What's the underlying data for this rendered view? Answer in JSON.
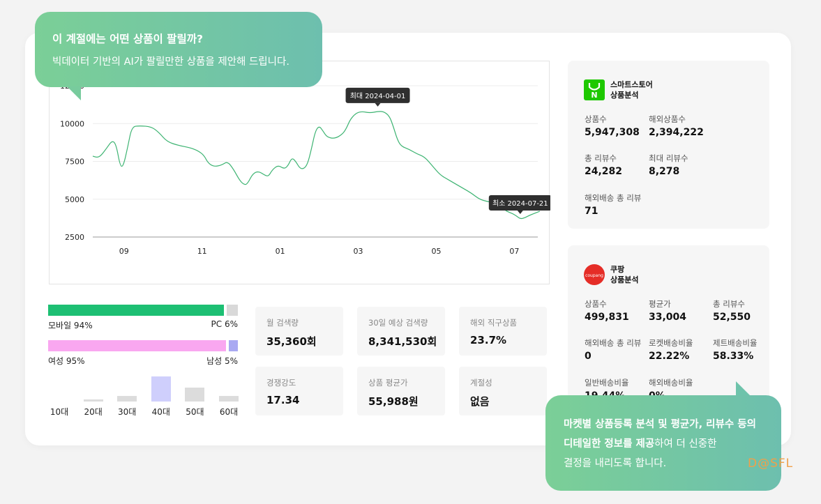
{
  "bubble_top": {
    "line1": "이 계절에는 어떤 상품이 팔릴까?",
    "line2": "빅데이터 기반의 AI가 팔릴만한 상품을 제안해 드립니다."
  },
  "bubble_bottom": {
    "line1_bold": "마켓별 상품등록 분석 및 평균가, 리뷰수 등의",
    "line2_bold": "디테일한 정보를 제공",
    "line2_rest": "하여 더 신중한",
    "line3": "결정을 내리도록 합니다."
  },
  "watermark": "D@SFL",
  "chart_data": {
    "type": "line",
    "ylim": [
      2500,
      12500
    ],
    "yticks": [
      "12500",
      "10000",
      "7500",
      "5000",
      "2500"
    ],
    "ytick_values": [
      12500,
      10000,
      7500,
      5000,
      2500
    ],
    "xticks": [
      "09",
      "11",
      "01",
      "03",
      "05",
      "07"
    ],
    "xtick_values": [
      0.8,
      2.8,
      4.8,
      6.8,
      8.8,
      10.8
    ],
    "xlim": [
      0,
      11.4
    ],
    "series_color": "#3cb371",
    "points": [
      [
        0.0,
        7850
      ],
      [
        0.1,
        7750
      ],
      [
        0.2,
        7850
      ],
      [
        0.35,
        8350
      ],
      [
        0.5,
        8900
      ],
      [
        0.6,
        8600
      ],
      [
        0.7,
        7200
      ],
      [
        0.78,
        7150
      ],
      [
        0.9,
        8500
      ],
      [
        1.0,
        9800
      ],
      [
        1.2,
        9850
      ],
      [
        1.5,
        9800
      ],
      [
        1.7,
        9400
      ],
      [
        1.9,
        8800
      ],
      [
        2.2,
        8550
      ],
      [
        2.5,
        8400
      ],
      [
        2.7,
        8200
      ],
      [
        2.85,
        7900
      ],
      [
        2.95,
        7400
      ],
      [
        3.1,
        7150
      ],
      [
        3.3,
        7250
      ],
      [
        3.45,
        7500
      ],
      [
        3.6,
        7000
      ],
      [
        3.75,
        6300
      ],
      [
        3.85,
        6000
      ],
      [
        3.95,
        5950
      ],
      [
        4.1,
        6700
      ],
      [
        4.25,
        6850
      ],
      [
        4.4,
        6600
      ],
      [
        4.5,
        6500
      ],
      [
        4.6,
        6950
      ],
      [
        4.75,
        7250
      ],
      [
        4.9,
        7000
      ],
      [
        5.0,
        7200
      ],
      [
        5.1,
        7750
      ],
      [
        5.2,
        7500
      ],
      [
        5.3,
        7050
      ],
      [
        5.4,
        7000
      ],
      [
        5.5,
        7300
      ],
      [
        5.6,
        8300
      ],
      [
        5.7,
        9500
      ],
      [
        5.8,
        9850
      ],
      [
        5.9,
        9500
      ],
      [
        6.0,
        9100
      ],
      [
        6.2,
        9000
      ],
      [
        6.4,
        9300
      ],
      [
        6.5,
        9700
      ],
      [
        6.6,
        10300
      ],
      [
        6.75,
        10700
      ],
      [
        6.9,
        10800
      ],
      [
        7.1,
        10700
      ],
      [
        7.3,
        10800
      ],
      [
        7.45,
        10800
      ],
      [
        7.6,
        10500
      ],
      [
        7.7,
        9800
      ],
      [
        7.8,
        8950
      ],
      [
        7.9,
        8500
      ],
      [
        8.1,
        8300
      ],
      [
        8.3,
        8000
      ],
      [
        8.5,
        7800
      ],
      [
        8.7,
        7200
      ],
      [
        8.9,
        6600
      ],
      [
        9.1,
        6300
      ],
      [
        9.3,
        6000
      ],
      [
        9.5,
        5700
      ],
      [
        9.7,
        5400
      ],
      [
        9.9,
        5000
      ],
      [
        10.1,
        4850
      ],
      [
        10.3,
        4750
      ],
      [
        10.45,
        4500
      ],
      [
        10.6,
        4200
      ],
      [
        10.75,
        4050
      ],
      [
        10.85,
        3900
      ],
      [
        10.95,
        3700
      ],
      [
        11.05,
        3750
      ],
      [
        11.2,
        3950
      ],
      [
        11.35,
        4100
      ],
      [
        11.45,
        4200
      ]
    ],
    "max_label": "최대 2024-04-01",
    "min_label": "최소 2024-07-21",
    "max_point": [
      7.3,
      10800
    ],
    "min_point": [
      10.95,
      3700
    ]
  },
  "device_ratio": {
    "mobile_label": "모바일 94%",
    "pc_label": "PC 6%",
    "mobile_value": 0.94,
    "mobile_color": "#1dbf73",
    "pc_color": "#d9d9d9"
  },
  "gender_ratio": {
    "female_label": "여성 95%",
    "male_label": "남성 5%",
    "female_value": 0.95,
    "female_color": "#f9a7f0",
    "male_color": "#a9a9f2"
  },
  "age_dist": [
    {
      "label": "10대",
      "value": 0
    },
    {
      "label": "20대",
      "value": 0.09
    },
    {
      "label": "30대",
      "value": 0.22
    },
    {
      "label": "40대",
      "value": 1.0,
      "highlight": true
    },
    {
      "label": "50대",
      "value": 0.55
    },
    {
      "label": "60대",
      "value": 0.22
    }
  ],
  "stats": [
    {
      "key": "월 검색량",
      "value": "35,360회"
    },
    {
      "key": "30일 예상 검색량",
      "value": "8,341,530회"
    },
    {
      "key": "해외 직구상품",
      "value": "23.7%"
    },
    {
      "key": "경쟁강도",
      "value": "17.34"
    },
    {
      "key": "상품 평균가",
      "value": "55,988원"
    },
    {
      "key": "계절성",
      "value": "없음"
    }
  ],
  "smartstore": {
    "title1": "스마트스토어",
    "title2": "상품분석",
    "logo_letter": "N",
    "metrics": [
      {
        "key": "상품수",
        "value": "5,947,308"
      },
      {
        "key": "해외상품수",
        "value": "2,394,222"
      },
      {
        "key": "총 리뷰수",
        "value": "24,282"
      },
      {
        "key": "최대 리뷰수",
        "value": "8,278"
      },
      {
        "key": "해외배송 총 리뷰",
        "value": "71"
      }
    ]
  },
  "coupang": {
    "title1": "쿠팡",
    "title2": "상품분석",
    "logo_text": "coupang",
    "metrics": [
      {
        "key": "상품수",
        "value": "499,831"
      },
      {
        "key": "평균가",
        "value": "33,004"
      },
      {
        "key": "총 리뷰수",
        "value": "52,550"
      },
      {
        "key": "해외배송 총 리뷰",
        "value": "0"
      },
      {
        "key": "로켓배송비율",
        "value": "22.22%"
      },
      {
        "key": "제트배송비율",
        "value": "58.33%"
      },
      {
        "key": "일반배송비율",
        "value": "19.44%"
      },
      {
        "key": "해외배송비율",
        "value": "0%"
      }
    ]
  }
}
